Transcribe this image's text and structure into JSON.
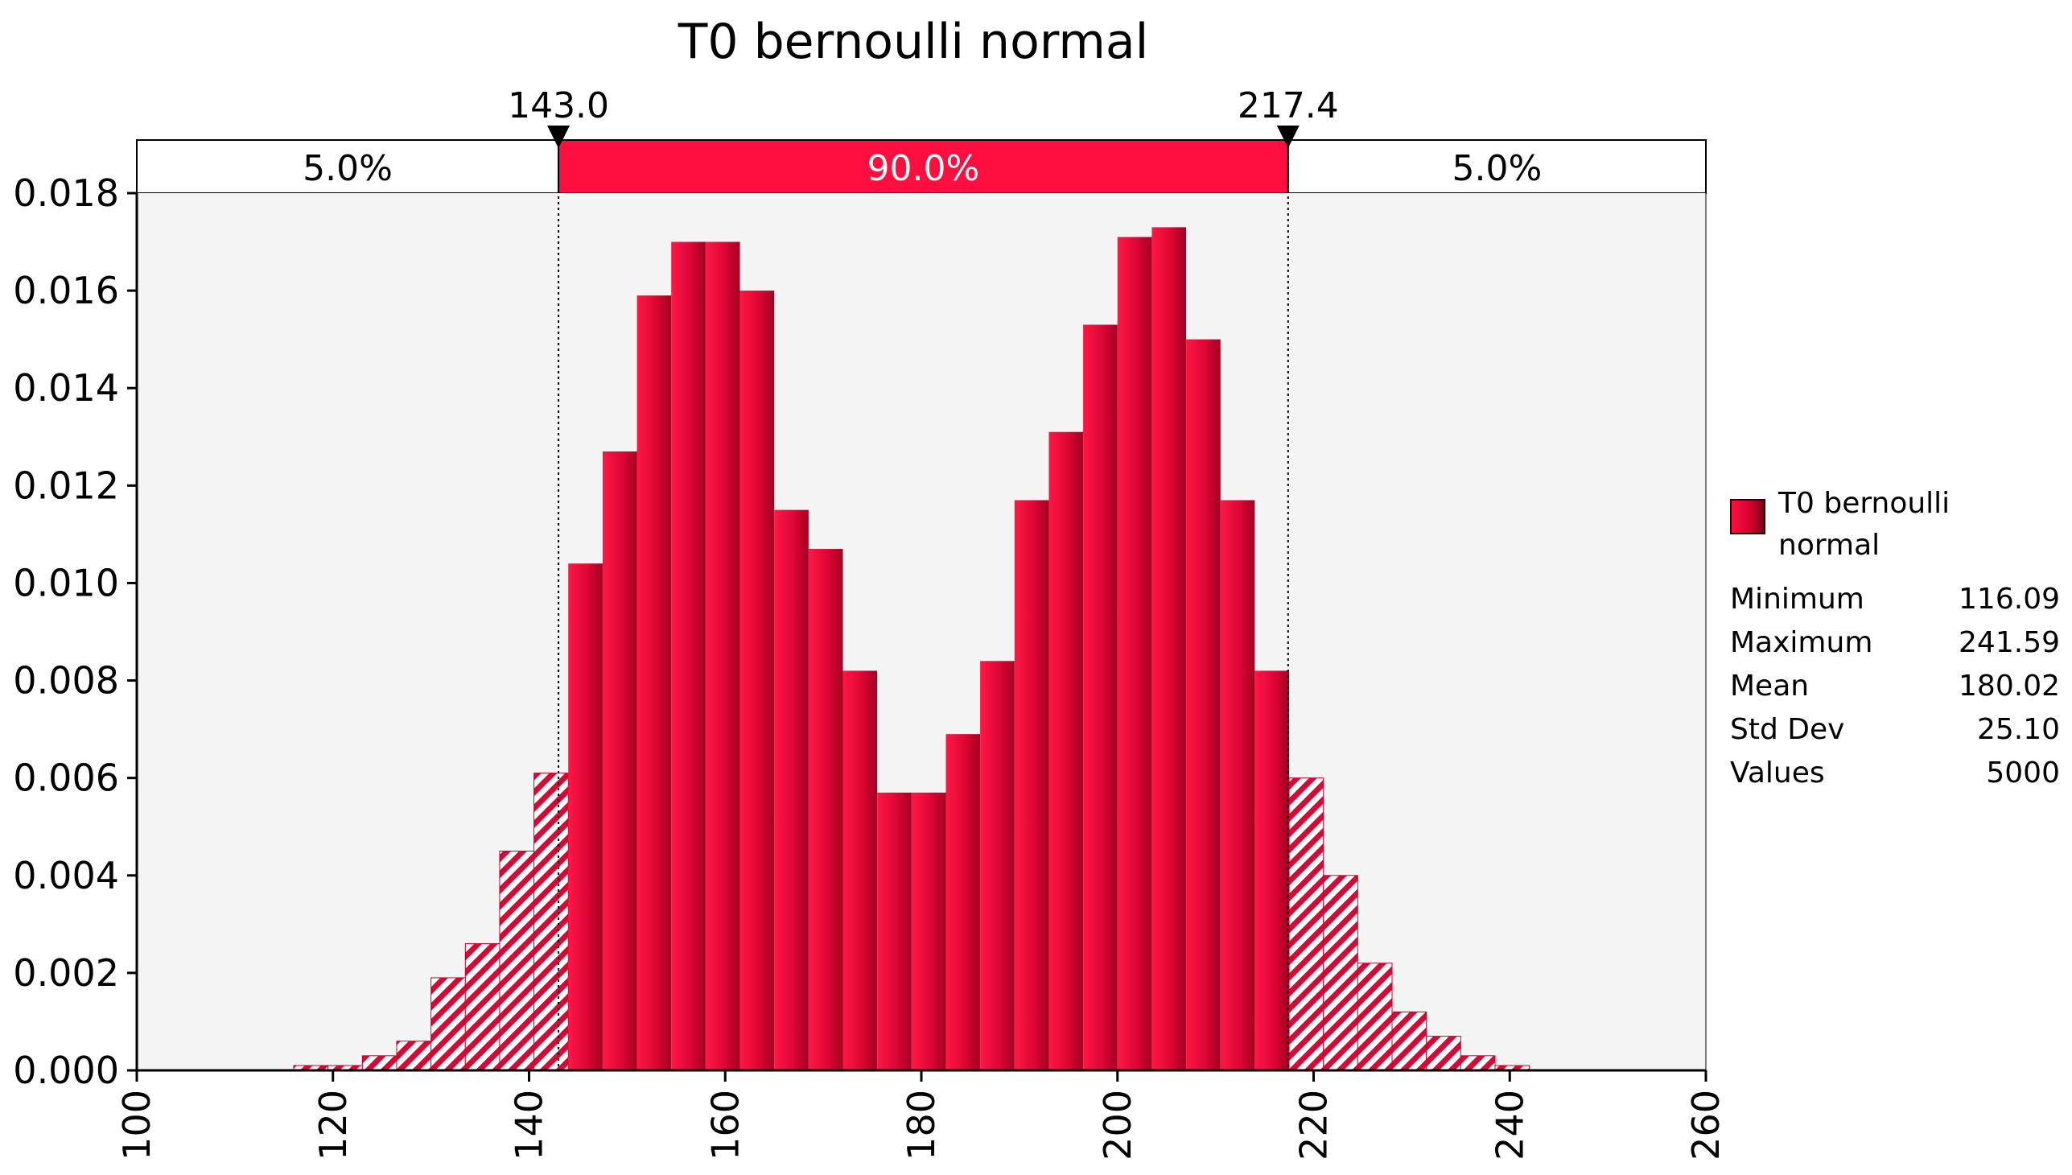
{
  "chart_data": {
    "type": "bar",
    "title": "T0 bernoulli normal",
    "xlabel": "",
    "ylabel": "",
    "xlim": [
      100,
      260
    ],
    "ylim": [
      0,
      0.018
    ],
    "x_ticks": [
      "100",
      "120",
      "140",
      "160",
      "180",
      "200",
      "220",
      "240",
      "260"
    ],
    "y_ticks": [
      "0.000",
      "0.002",
      "0.004",
      "0.006",
      "0.008",
      "0.010",
      "0.012",
      "0.014",
      "0.016",
      "0.018"
    ],
    "bin_width": 3.5,
    "bins": [
      {
        "x0": 116.0,
        "value": 0.0001
      },
      {
        "x0": 119.5,
        "value": 0.0001
      },
      {
        "x0": 123.0,
        "value": 0.0003
      },
      {
        "x0": 126.5,
        "value": 0.0006
      },
      {
        "x0": 130.0,
        "value": 0.0019
      },
      {
        "x0": 133.5,
        "value": 0.0026
      },
      {
        "x0": 137.0,
        "value": 0.0045
      },
      {
        "x0": 140.5,
        "value": 0.0061
      },
      {
        "x0": 144.0,
        "value": 0.0104
      },
      {
        "x0": 147.5,
        "value": 0.0127
      },
      {
        "x0": 151.0,
        "value": 0.0159
      },
      {
        "x0": 154.5,
        "value": 0.017
      },
      {
        "x0": 158.0,
        "value": 0.017
      },
      {
        "x0": 161.5,
        "value": 0.016
      },
      {
        "x0": 165.0,
        "value": 0.0115
      },
      {
        "x0": 168.5,
        "value": 0.0107
      },
      {
        "x0": 172.0,
        "value": 0.0082
      },
      {
        "x0": 175.5,
        "value": 0.0057
      },
      {
        "x0": 179.0,
        "value": 0.0057
      },
      {
        "x0": 182.5,
        "value": 0.0069
      },
      {
        "x0": 186.0,
        "value": 0.0084
      },
      {
        "x0": 189.5,
        "value": 0.0117
      },
      {
        "x0": 193.0,
        "value": 0.0131
      },
      {
        "x0": 196.5,
        "value": 0.0153
      },
      {
        "x0": 200.0,
        "value": 0.0171
      },
      {
        "x0": 203.5,
        "value": 0.0173
      },
      {
        "x0": 207.0,
        "value": 0.015
      },
      {
        "x0": 210.5,
        "value": 0.0117
      },
      {
        "x0": 214.0,
        "value": 0.0082
      },
      {
        "x0": 217.5,
        "value": 0.006
      },
      {
        "x0": 221.0,
        "value": 0.004
      },
      {
        "x0": 224.5,
        "value": 0.0022
      },
      {
        "x0": 228.0,
        "value": 0.0012
      },
      {
        "x0": 231.5,
        "value": 0.0007
      },
      {
        "x0": 235.0,
        "value": 0.0003
      },
      {
        "x0": 238.5,
        "value": 0.0001
      }
    ],
    "lower_marker": {
      "value": 143.0,
      "label": "143.0"
    },
    "upper_marker": {
      "value": 217.4,
      "label": "217.4"
    },
    "bands": [
      {
        "label": "5.0%",
        "highlight": false
      },
      {
        "label": "90.0%",
        "highlight": true
      },
      {
        "label": "5.0%",
        "highlight": false
      }
    ],
    "legend": "right"
  },
  "legend": {
    "series_name": "T0 bernoulli normal",
    "stats": [
      {
        "label": "Minimum",
        "value": "116.09"
      },
      {
        "label": "Maximum",
        "value": "241.59"
      },
      {
        "label": "Mean",
        "value": "180.02"
      },
      {
        "label": "Std Dev",
        "value": "25.10"
      },
      {
        "label": "Values",
        "value": "5000"
      }
    ]
  },
  "colors": {
    "bar": "#e20a3a",
    "band_highlight": "#ff0f3f",
    "plot_background": "#f4f4f4"
  }
}
